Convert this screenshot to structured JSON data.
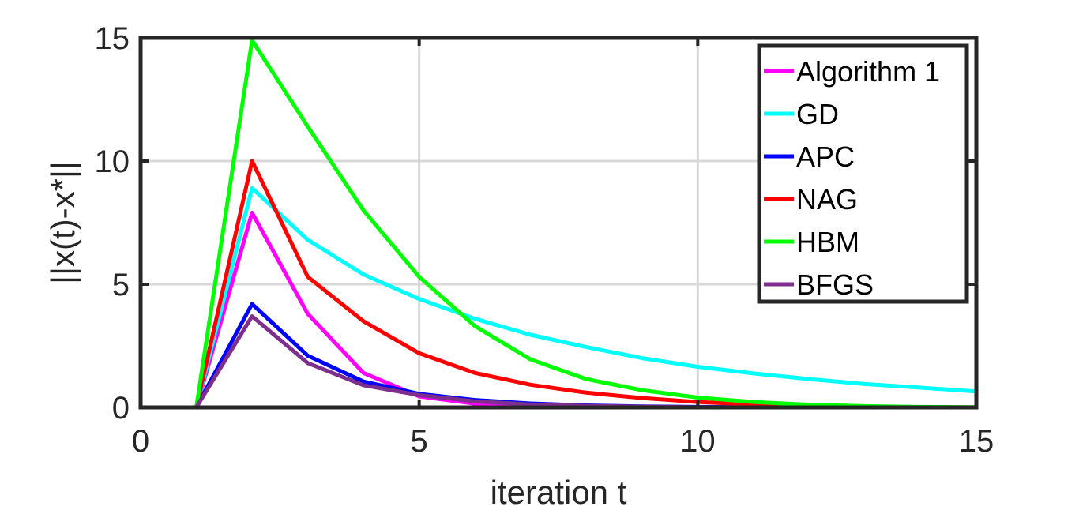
{
  "chart_data": {
    "type": "line",
    "xlabel": "iteration t",
    "ylabel": "||x(t)-x*||",
    "xlim": [
      0,
      15
    ],
    "ylim": [
      0,
      15
    ],
    "xticks": [
      "0",
      "5",
      "10",
      "15"
    ],
    "yticks": [
      "0",
      "5",
      "10",
      "15"
    ],
    "grid": true,
    "legend_position": "top-right",
    "x": [
      1,
      2,
      3,
      4,
      5,
      6,
      7,
      8,
      9,
      10,
      11,
      12,
      13,
      14,
      15
    ],
    "series": [
      {
        "name": "Algorithm 1",
        "color": "#ff00ff",
        "values": [
          0,
          7.9,
          3.8,
          1.4,
          0.45,
          0.15,
          0.06,
          0.02,
          0.01,
          0.0,
          0.0,
          0.0,
          0.0,
          0.0,
          0.0
        ]
      },
      {
        "name": "GD",
        "color": "#00ffff",
        "values": [
          0,
          8.9,
          6.8,
          5.4,
          4.4,
          3.6,
          2.95,
          2.45,
          2.0,
          1.65,
          1.38,
          1.15,
          0.95,
          0.8,
          0.65
        ]
      },
      {
        "name": "APC",
        "color": "#0000ff",
        "values": [
          0,
          4.2,
          2.1,
          1.05,
          0.55,
          0.3,
          0.16,
          0.08,
          0.04,
          0.02,
          0.01,
          0.0,
          0.0,
          0.0,
          0.0
        ]
      },
      {
        "name": "NAG",
        "color": "#ff0000",
        "values": [
          0,
          10.0,
          5.3,
          3.5,
          2.2,
          1.4,
          0.92,
          0.6,
          0.38,
          0.22,
          0.12,
          0.06,
          0.03,
          0.01,
          0.0
        ]
      },
      {
        "name": "HBM",
        "color": "#00ff00",
        "values": [
          0,
          14.9,
          11.4,
          8.0,
          5.3,
          3.3,
          1.95,
          1.15,
          0.7,
          0.4,
          0.22,
          0.11,
          0.05,
          0.02,
          0.01
        ]
      },
      {
        "name": "BFGS",
        "color": "#7e2f8e",
        "values": [
          0,
          3.7,
          1.8,
          0.9,
          0.5,
          0.25,
          0.12,
          0.06,
          0.03,
          0.01,
          0.0,
          0.0,
          0.0,
          0.0,
          0.0
        ]
      }
    ]
  }
}
